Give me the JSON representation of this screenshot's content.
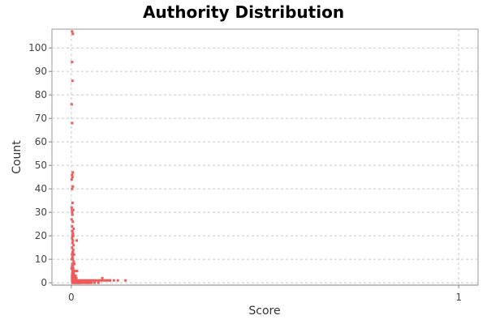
{
  "chart_data": {
    "type": "scatter",
    "title": "Authority Distribution",
    "xlabel": "Score",
    "ylabel": "Count",
    "xlim": [
      -0.05,
      1.05
    ],
    "ylim": [
      -1,
      108
    ],
    "xticks": [
      0,
      1
    ],
    "xtick_labels": [
      "0",
      "1"
    ],
    "yticks": [
      0,
      10,
      20,
      30,
      40,
      50,
      60,
      70,
      80,
      90,
      100
    ],
    "ytick_labels": [
      "0",
      "10",
      "20",
      "30",
      "40",
      "50",
      "60",
      "70",
      "80",
      "90",
      "100"
    ],
    "grid": true,
    "color": "#f05a5a",
    "series": [
      {
        "x": [
          0.002,
          0.004,
          0.002,
          0.003,
          0.001,
          0.002,
          0.004,
          0.002,
          0.003,
          0.001,
          0.004,
          0.002,
          0.003,
          0.001,
          0.002,
          0.005,
          0.002,
          0.003,
          0.001,
          0.004,
          0.002,
          0.006,
          0.003,
          0.002,
          0.004,
          0.003,
          0.005,
          0.002,
          0.004,
          0.003,
          0.006,
          0.002,
          0.005,
          0.004,
          0.003,
          0.002,
          0.007,
          0.003,
          0.004,
          0.001,
          0.006,
          0.003,
          0.008,
          0.004,
          0.002,
          0.003,
          0.001,
          0.005,
          0.003,
          0.012,
          0.008,
          0.015,
          0.004,
          0.003,
          0.006,
          0.002,
          0.005,
          0.009,
          0.004,
          0.007,
          0.003,
          0.011,
          0.006,
          0.004,
          0.009,
          0.002,
          0.006,
          0.013,
          0.005,
          0.007,
          0.003,
          0.004,
          0.009,
          0.002,
          0.014,
          0.006,
          0.004,
          0.012,
          0.005,
          0.008,
          0.003,
          0.01,
          0.015,
          0.02,
          0.025,
          0.03,
          0.035,
          0.04,
          0.045,
          0.05,
          0.055,
          0.06,
          0.065,
          0.07,
          0.075,
          0.08,
          0.085,
          0.09,
          0.095,
          0.1,
          0.11,
          0.12,
          0.005,
          0.012,
          0.02,
          0.028,
          0.036,
          0.044,
          0.052,
          0.06,
          0.07,
          0.008,
          0.018,
          0.026,
          0.034,
          0.042,
          0.05,
          0.003,
          0.01,
          0.016,
          0.022,
          0.009,
          0.014,
          0.006,
          0.02,
          0.015,
          0.04,
          0.045,
          0.014,
          0.08,
          0.1,
          0.14
        ],
        "y": [
          107,
          106,
          94,
          86,
          76,
          68,
          47,
          46,
          45,
          44,
          41,
          40,
          34,
          32,
          31,
          31,
          30,
          29,
          27,
          26,
          24,
          23,
          22,
          22,
          21,
          20,
          20,
          19,
          18,
          17,
          16,
          15,
          14,
          13,
          13,
          12,
          12,
          11,
          10,
          10,
          9,
          8,
          8,
          7,
          7,
          6,
          6,
          6,
          5,
          5,
          5,
          5,
          4,
          4,
          4,
          3,
          3,
          3,
          3,
          3,
          3,
          3,
          2,
          2,
          2,
          2,
          2,
          2,
          2,
          2,
          2,
          1,
          1,
          1,
          1,
          1,
          1,
          1,
          1,
          1,
          1,
          1,
          1,
          1,
          1,
          1,
          1,
          1,
          1,
          1,
          1,
          1,
          1,
          1,
          1,
          1,
          1,
          1,
          1,
          1,
          1,
          1,
          0,
          0,
          0,
          0,
          0,
          0,
          0,
          0,
          0,
          0,
          0,
          0,
          0,
          0,
          0,
          0,
          0,
          0,
          0,
          0,
          0,
          0,
          0,
          0,
          0,
          0,
          18,
          2,
          1,
          1
        ]
      }
    ]
  }
}
